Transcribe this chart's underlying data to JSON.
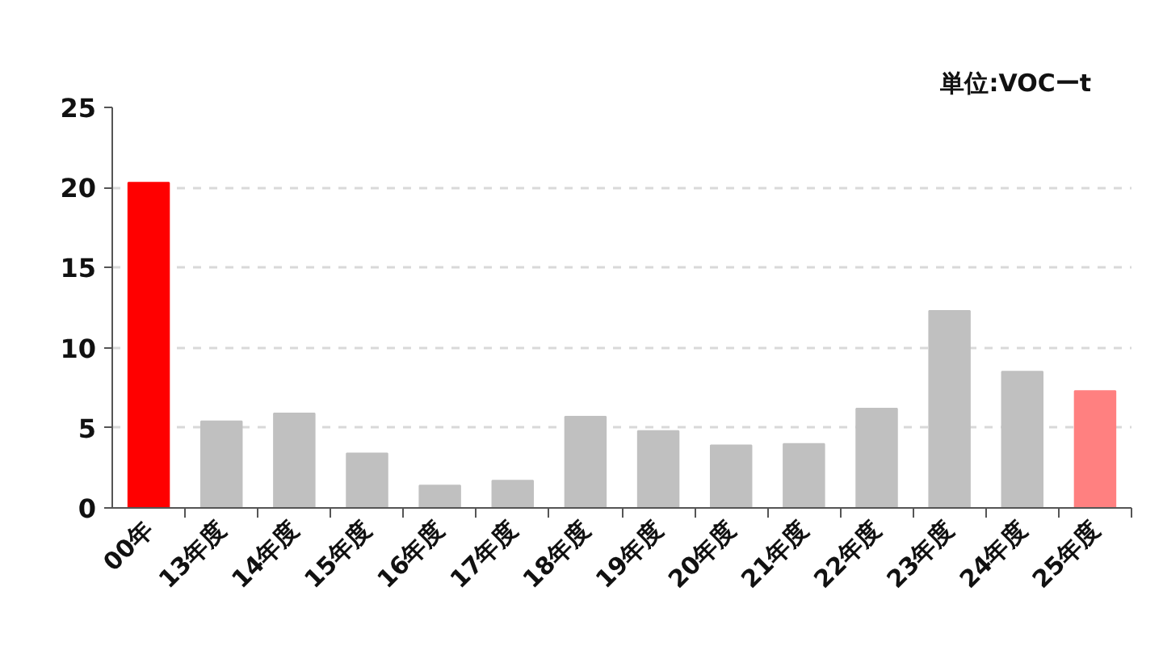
{
  "chart_data": {
    "type": "bar",
    "categories": [
      "00年",
      "13年度",
      "14年度",
      "15年度",
      "16年度",
      "17年度",
      "18年度",
      "19年度",
      "20年度",
      "21年度",
      "22年度",
      "23年度",
      "24年度",
      "25年度"
    ],
    "values": [
      20.3,
      5.4,
      5.9,
      3.4,
      1.4,
      1.7,
      5.7,
      4.8,
      3.9,
      4.0,
      6.2,
      12.3,
      8.5,
      7.3
    ],
    "colors": [
      "#ff0000",
      "#c0c0c0",
      "#c0c0c0",
      "#c0c0c0",
      "#c0c0c0",
      "#c0c0c0",
      "#c0c0c0",
      "#c0c0c0",
      "#c0c0c0",
      "#c0c0c0",
      "#c0c0c0",
      "#c0c0c0",
      "#c0c0c0",
      "#ff8080"
    ],
    "ylim": [
      0,
      25
    ],
    "yticks": [
      0,
      5,
      10,
      15,
      20,
      25
    ],
    "grid": "y",
    "annotations": [
      "単位:VOCーt"
    ]
  }
}
